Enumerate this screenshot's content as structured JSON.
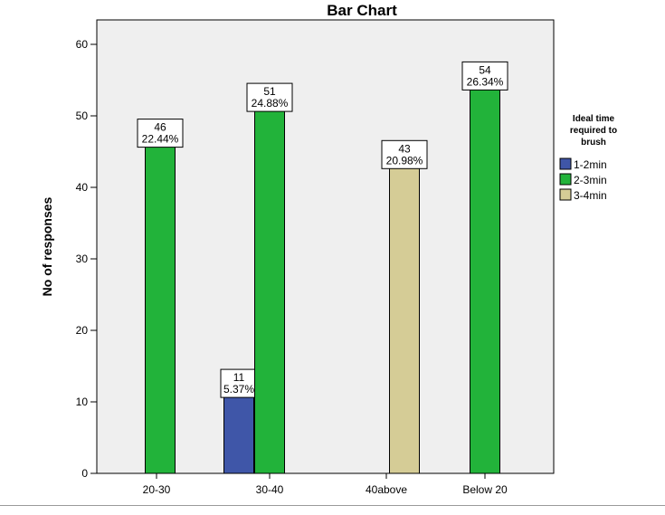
{
  "chart_data": {
    "type": "bar",
    "title": "Bar Chart",
    "xlabel": "",
    "ylabel": "No of responses",
    "categories": [
      "20-30",
      "30-40",
      "40above",
      "Below 20"
    ],
    "series": [
      {
        "name": "1-2min",
        "color": "#3f56a8",
        "values": [
          null,
          11,
          null,
          null
        ],
        "labels": [
          null,
          "5.37%",
          null,
          null
        ]
      },
      {
        "name": "2-3min",
        "color": "#22b33a",
        "values": [
          46,
          51,
          null,
          54
        ],
        "labels": [
          "22.44%",
          "24.88%",
          null,
          "26.34%"
        ]
      },
      {
        "name": "3-4min",
        "color": "#d5cc96",
        "values": [
          null,
          null,
          43,
          null
        ],
        "labels": [
          null,
          null,
          "20.98%",
          null
        ]
      }
    ],
    "ylim": [
      0,
      60
    ],
    "yticks": [
      0,
      10,
      20,
      30,
      40,
      50,
      60
    ],
    "grid": false,
    "legend_title": "Ideal time required to brush",
    "legend_position": "right",
    "plot_background": "#efefef"
  }
}
